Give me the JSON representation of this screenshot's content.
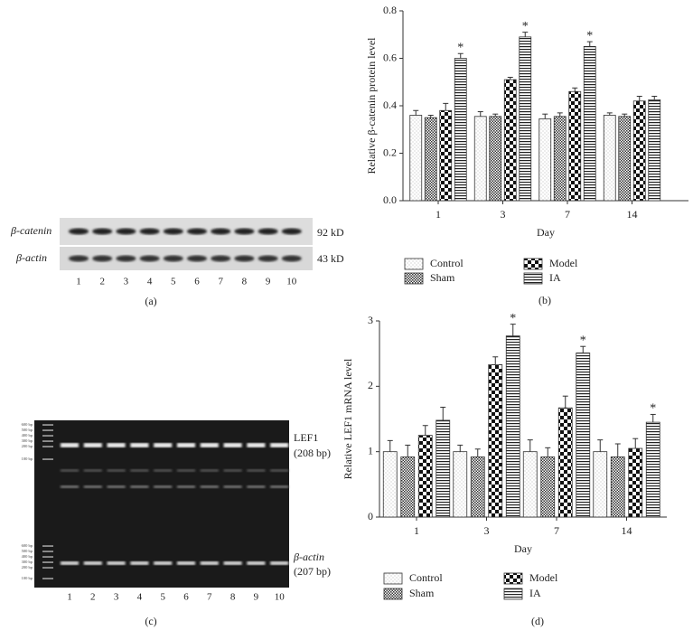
{
  "blot": {
    "panel": "(a)",
    "rows": [
      {
        "label": "β-catenin",
        "size": "92 kD"
      },
      {
        "label": "β-actin",
        "size": "43 kD"
      }
    ],
    "lanes": [
      "1",
      "2",
      "3",
      "4",
      "5",
      "6",
      "7",
      "8",
      "9",
      "10"
    ]
  },
  "gel": {
    "panel": "(c)",
    "bands": [
      {
        "label": "LEF1",
        "size": "(208 bp)"
      },
      {
        "label": "β-actin",
        "size": "(207 bp)"
      }
    ],
    "ladder": [
      "600 bp",
      "500 bp",
      "400 bp",
      "300 bp",
      "200 bp",
      "100 bp"
    ],
    "lanes": [
      "1",
      "2",
      "3",
      "4",
      "5",
      "6",
      "7",
      "8",
      "9",
      "10"
    ]
  },
  "chart_data": [
    {
      "type": "bar",
      "panel": "(b)",
      "xlabel": "Day",
      "ylabel": "Relative β-catenin protein level",
      "categories": [
        "1",
        "3",
        "7",
        "14"
      ],
      "ylim": [
        0,
        0.8
      ],
      "yticks": [
        {
          "value": 0,
          "label": "0.0"
        },
        0.2,
        0.4,
        0.6,
        0.8
      ],
      "series": [
        {
          "name": "Control",
          "values": [
            0.36,
            0.355,
            0.345,
            0.36
          ],
          "errors": [
            0.02,
            0.02,
            0.02,
            0.01
          ]
        },
        {
          "name": "Sham",
          "values": [
            0.35,
            0.355,
            0.355,
            0.355
          ],
          "errors": [
            0.01,
            0.01,
            0.015,
            0.01
          ]
        },
        {
          "name": "Model",
          "values": [
            0.38,
            0.51,
            0.46,
            0.42
          ],
          "errors": [
            0.03,
            0.01,
            0.015,
            0.02
          ]
        },
        {
          "name": "IA",
          "values": [
            0.6,
            0.69,
            0.65,
            0.425
          ],
          "errors": [
            0.02,
            0.02,
            0.02,
            0.015
          ],
          "labels": [
            "*",
            "*",
            "*",
            null
          ]
        }
      ]
    },
    {
      "type": "bar",
      "panel": "(d)",
      "xlabel": "Day",
      "ylabel": "Relative LEF1 mRNA level",
      "categories": [
        "1",
        "3",
        "7",
        "14"
      ],
      "ylim": [
        0,
        3
      ],
      "yticks": [
        0,
        1,
        2,
        3
      ],
      "series": [
        {
          "name": "Control",
          "values": [
            1.0,
            1.0,
            1.0,
            1.0
          ],
          "errors": [
            0.17,
            0.1,
            0.18,
            0.18
          ]
        },
        {
          "name": "Sham",
          "values": [
            0.92,
            0.92,
            0.92,
            0.92
          ],
          "errors": [
            0.18,
            0.12,
            0.14,
            0.2
          ]
        },
        {
          "name": "Model",
          "values": [
            1.25,
            2.33,
            1.67,
            1.05
          ],
          "errors": [
            0.15,
            0.12,
            0.18,
            0.15
          ]
        },
        {
          "name": "IA",
          "values": [
            1.48,
            2.77,
            2.51,
            1.45
          ],
          "errors": [
            0.2,
            0.18,
            0.1,
            0.12
          ],
          "labels": [
            null,
            "*",
            "*",
            "*"
          ]
        }
      ]
    }
  ]
}
